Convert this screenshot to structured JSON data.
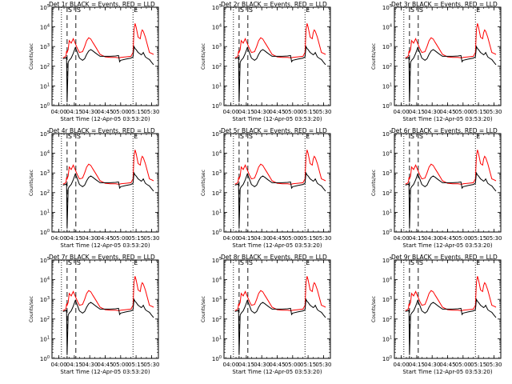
{
  "chart_data": {
    "type": "line",
    "y_scale": "log",
    "ylim": [
      1,
      100000
    ],
    "ylabel": "Counts/sec",
    "xlabel": "Start Time (12-Apr-05 03:53:20)",
    "xlim": [
      "03:53:20",
      "05:36:40"
    ],
    "x_ticks": [
      "04:00",
      "04:15",
      "04:30",
      "04:45",
      "05:00",
      "05:15",
      "05:30"
    ],
    "y_ticks": [
      "10^0",
      "10^1",
      "10^2",
      "10^3",
      "10^4",
      "10^5"
    ],
    "series_colors": {
      "events": "#000000",
      "lld": "#ff0000"
    },
    "legend_text": "BLACK = Events, RED = LLD",
    "panel_titles": [
      "Det 1r",
      "Det 2r",
      "Det 3r",
      "Det 4r",
      "Det 5r",
      "Det 6r",
      "Det 7r",
      "Det 8r",
      "Det 9r"
    ],
    "region_markers": [
      {
        "time": "04:02:30",
        "style": "dotted"
      },
      {
        "time": "04:08:00",
        "style": "dashed",
        "label": "S"
      },
      {
        "time": "04:16:30",
        "style": "dashed",
        "label": "S"
      },
      {
        "time": "05:12:00",
        "style": "dotted",
        "label": "E"
      },
      {
        "time": "05:36:40",
        "style": "dotted"
      }
    ],
    "series": [
      {
        "name": "Events",
        "x": [
          "04:04",
          "04:06",
          "04:07",
          "04:07:30",
          "04:08",
          "04:09",
          "04:10",
          "04:12",
          "04:14",
          "04:16",
          "04:18",
          "04:20",
          "04:23",
          "04:25",
          "04:27",
          "04:29",
          "04:31",
          "04:33",
          "04:36",
          "04:40",
          "04:45",
          "04:50",
          "04:55",
          "04:58",
          "04:59",
          "05:00",
          "05:05",
          "05:10",
          "05:12",
          "05:13",
          "05:14",
          "05:15",
          "05:17",
          "05:19",
          "05:20",
          "05:21",
          "05:22",
          "05:24",
          "05:26",
          "05:28",
          "05:30",
          "05:32"
        ],
        "values": [
          240,
          260,
          260,
          300,
          1.5,
          160,
          200,
          260,
          450,
          900,
          500,
          260,
          200,
          240,
          400,
          600,
          700,
          600,
          450,
          320,
          320,
          320,
          330,
          350,
          170,
          200,
          230,
          260,
          300,
          1000,
          800,
          700,
          500,
          420,
          380,
          420,
          500,
          300,
          250,
          220,
          160,
          120
        ]
      },
      {
        "name": "LLD",
        "x": [
          "04:04",
          "04:06",
          "04:07",
          "04:07:30",
          "04:08",
          "04:09",
          "04:10",
          "04:12",
          "04:14",
          "04:16",
          "04:18",
          "04:20",
          "04:23",
          "04:25",
          "04:27",
          "04:29",
          "04:31",
          "04:33",
          "04:36",
          "04:40",
          "04:45",
          "04:50",
          "04:55",
          "04:58",
          "04:59",
          "05:00",
          "05:05",
          "05:10",
          "05:12",
          "05:13",
          "05:14",
          "05:15",
          "05:17",
          "05:19",
          "05:20",
          "05:21",
          "05:22",
          "05:24",
          "05:26",
          "05:28",
          "05:30",
          "05:32"
        ],
        "values": [
          270,
          300,
          350,
          600,
          500,
          700,
          2000,
          1500,
          2500,
          1400,
          800,
          500,
          550,
          1000,
          2000,
          2800,
          2400,
          1600,
          900,
          400,
          300,
          280,
          280,
          270,
          270,
          280,
          300,
          320,
          500,
          7000,
          15000,
          10000,
          3000,
          2500,
          5000,
          7000,
          6000,
          3000,
          1200,
          500,
          450,
          400
        ]
      }
    ]
  }
}
